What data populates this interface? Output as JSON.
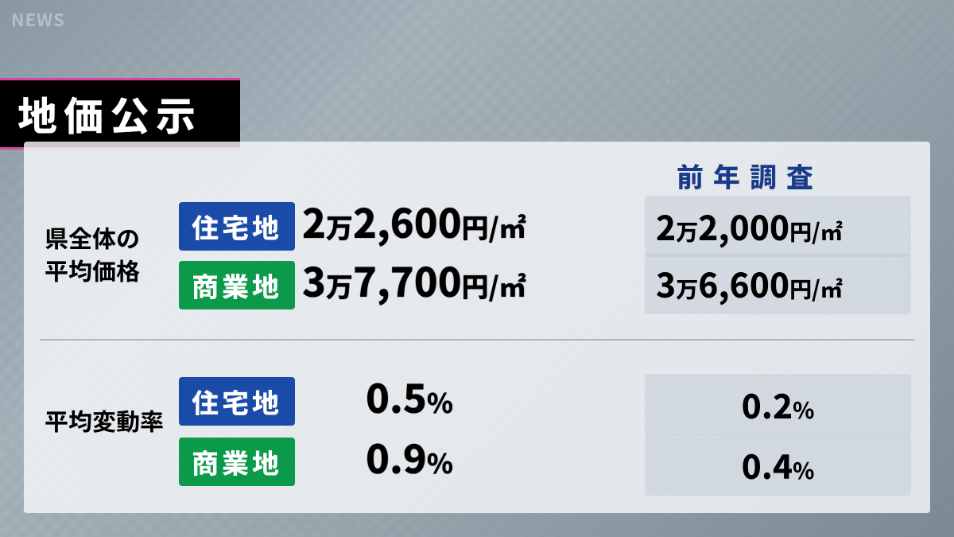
{
  "watermark": "NEWS",
  "title": "地価公示",
  "header_prev": "前年調査",
  "section1_label": "県全体の\n平均価格",
  "section2_label": "平均変動率",
  "tags": {
    "residential": "住宅地",
    "commercial": "商業地"
  },
  "price": {
    "residential_current": {
      "pre": "2",
      "man": "万",
      "num": "2,600",
      "unit": "円/㎡"
    },
    "commercial_current": {
      "pre": "3",
      "man": "万",
      "num": "7,700",
      "unit": "円/㎡"
    },
    "residential_prev": {
      "pre": "2",
      "man": "万",
      "num": "2,000",
      "unit": "円/㎡"
    },
    "commercial_prev": {
      "pre": "3",
      "man": "万",
      "num": "6,600",
      "unit": "円/㎡"
    }
  },
  "rate": {
    "residential_current": {
      "num": "0.5",
      "unit": "%"
    },
    "commercial_current": {
      "num": "0.9",
      "unit": "%"
    },
    "residential_prev": {
      "num": "0.2",
      "unit": "%"
    },
    "commercial_prev": {
      "num": "0.4",
      "unit": "%"
    }
  },
  "colors": {
    "tag_blue": "#1a4ba8",
    "tag_green": "#0a9a4a",
    "banner_border": "#d946a0",
    "header_text": "#1a3a8a"
  }
}
